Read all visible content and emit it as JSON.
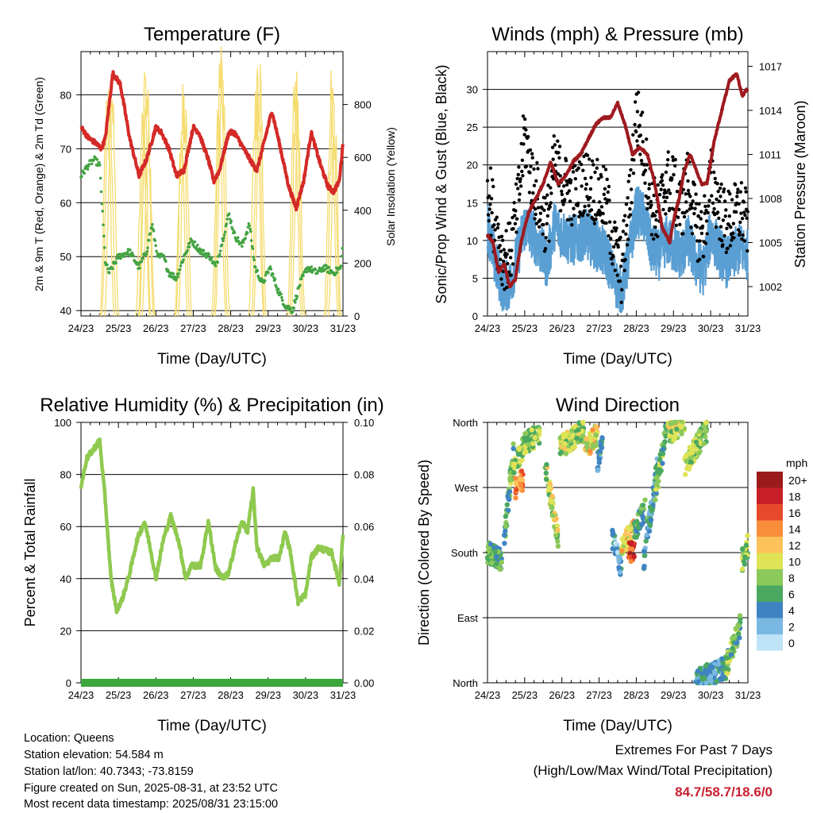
{
  "colors": {
    "temperature": "#d42a27",
    "dewpoint": "#43a343",
    "insolation": "#f5dc6f",
    "gust": "#000000",
    "wind": "#5a9fd3",
    "pressure": "#9e1a1f",
    "humidity": "#8fc94f",
    "precip": "#3ca83c",
    "extremes": "#c8202f"
  },
  "time_ticks": [
    "24/23",
    "25/23",
    "26/23",
    "27/23",
    "28/23",
    "29/23",
    "30/23",
    "31/23"
  ],
  "xlabel": "Time (Day/UTC)",
  "chart_data": [
    {
      "panel": "temperature",
      "type": "line",
      "title": "Temperature (F)",
      "ylabel_left": "2m & 9m T (Red, Orange) & 2m Td (Green)",
      "ylabel_right": "Solar Insolation (Yellow)",
      "ylim_left": [
        39,
        88
      ],
      "ylim_right": [
        0,
        1000
      ],
      "yticks_left": [
        40,
        50,
        60,
        70,
        80
      ],
      "yticks_right": [
        0,
        200,
        400,
        600,
        800
      ],
      "x_day_range": [
        24,
        31
      ],
      "grid": "horizontal",
      "series": [
        {
          "name": "2m T",
          "axis": "left",
          "x": [
            24,
            24.2,
            24.4,
            24.55,
            24.65,
            24.85,
            25.05,
            25.3,
            25.55,
            25.75,
            26.0,
            26.15,
            26.35,
            26.55,
            26.75,
            27.0,
            27.15,
            27.4,
            27.55,
            27.7,
            27.95,
            28.1,
            28.35,
            28.6,
            28.7,
            28.85,
            29.1,
            29.3,
            29.55,
            29.75,
            29.95,
            30.15,
            30.4,
            30.6,
            30.75,
            30.9,
            31.0
          ],
          "values": [
            74,
            72,
            71,
            70,
            72,
            84,
            82,
            72,
            65,
            68,
            74,
            73,
            70,
            65,
            66,
            74,
            73,
            68,
            64,
            66,
            73,
            73,
            70,
            67,
            66,
            70,
            77,
            71,
            63,
            59,
            64,
            73,
            67,
            63,
            62,
            64,
            71
          ]
        },
        {
          "name": "2m Td",
          "axis": "left",
          "x": [
            24,
            24.2,
            24.35,
            24.5,
            24.65,
            24.75,
            25.0,
            25.3,
            25.55,
            25.75,
            25.9,
            26.05,
            26.2,
            26.35,
            26.55,
            26.75,
            26.95,
            27.2,
            27.45,
            27.6,
            27.85,
            27.95,
            28.1,
            28.3,
            28.5,
            28.65,
            28.85,
            29.05,
            29.25,
            29.45,
            29.65,
            29.85,
            30.05,
            30.3,
            30.5,
            30.75,
            30.95,
            31.0
          ],
          "values": [
            65,
            67,
            68,
            67,
            49,
            47,
            50,
            51,
            48,
            51,
            56,
            50,
            50,
            47,
            46,
            50,
            53,
            51,
            50,
            48,
            55,
            58,
            54,
            52,
            56,
            48,
            45,
            48,
            44,
            41,
            40,
            45,
            48,
            47,
            48,
            47,
            48,
            54
          ]
        },
        {
          "name": "Solar Insolation",
          "axis": "right",
          "peak_days": [
            24.7,
            24.75,
            24.82,
            25.65,
            25.7,
            25.75,
            25.8,
            26.68,
            26.72,
            26.78,
            27.68,
            27.73,
            27.78,
            28.68,
            28.73,
            28.78,
            29.7,
            29.75,
            29.8,
            30.68,
            30.73,
            30.78
          ],
          "peak_values": [
            800,
            850,
            900,
            750,
            880,
            920,
            700,
            700,
            820,
            780,
            780,
            950,
            900,
            850,
            950,
            900,
            850,
            880,
            700,
            850,
            820,
            750
          ]
        }
      ]
    },
    {
      "panel": "winds",
      "type": "line",
      "title": "Winds (mph) & Pressure (mb)",
      "ylabel_left": "Sonic/Prop Wind & Gust (Blue, Black)",
      "ylabel_right": "Station Pressure (Maroon)",
      "ylim_left": [
        0,
        35
      ],
      "ylim_right": [
        1000,
        1018
      ],
      "yticks_left": [
        0,
        5,
        10,
        15,
        20,
        25,
        30
      ],
      "yticks_right": [
        1002,
        1005,
        1008,
        1011,
        1014,
        1017
      ],
      "x_day_range": [
        24,
        31
      ],
      "grid": "horizontal",
      "series": [
        {
          "name": "Wind",
          "axis": "left",
          "x": [
            24,
            24.2,
            24.4,
            24.6,
            24.8,
            25.0,
            25.2,
            25.4,
            25.6,
            25.8,
            26.0,
            26.2,
            26.4,
            26.6,
            26.8,
            27.0,
            27.2,
            27.4,
            27.6,
            27.8,
            28.0,
            28.2,
            28.4,
            28.6,
            28.8,
            29.0,
            29.2,
            29.4,
            29.6,
            29.8,
            30.0,
            30.2,
            30.4,
            30.6,
            30.8,
            31.0
          ],
          "values": [
            12,
            7,
            4,
            4,
            8,
            12,
            11,
            9,
            7,
            12,
            11,
            10,
            10,
            11,
            10,
            9,
            8,
            5,
            3,
            8,
            14,
            13,
            9,
            8,
            10,
            9,
            8,
            10,
            7,
            6,
            11,
            9,
            7,
            8,
            9,
            8
          ]
        },
        {
          "name": "Gust",
          "axis": "left",
          "x": [
            24,
            24.2,
            24.4,
            24.6,
            24.8,
            25.0,
            25.2,
            25.4,
            25.6,
            25.8,
            26.0,
            26.2,
            26.4,
            26.6,
            26.8,
            27.0,
            27.2,
            27.4,
            27.6,
            27.8,
            28.0,
            28.2,
            28.4,
            28.6,
            28.8,
            29.0,
            29.2,
            29.4,
            29.6,
            29.8,
            30.0,
            30.2,
            30.4,
            30.6,
            30.8,
            31.0
          ],
          "values": [
            18,
            12,
            8,
            8,
            14,
            24,
            18,
            15,
            12,
            20,
            18,
            16,
            17,
            18,
            17,
            16,
            15,
            9,
            6,
            14,
            27,
            22,
            15,
            13,
            18,
            17,
            14,
            18,
            12,
            11,
            18,
            15,
            12,
            13,
            14,
            12
          ]
        },
        {
          "name": "Station Pressure",
          "axis": "right",
          "x": [
            24,
            24.15,
            24.3,
            24.45,
            24.6,
            24.75,
            24.9,
            25.1,
            25.3,
            25.5,
            25.7,
            25.9,
            26.1,
            26.3,
            26.5,
            26.7,
            26.9,
            27.1,
            27.3,
            27.5,
            27.7,
            27.9,
            28.1,
            28.3,
            28.5,
            28.7,
            28.9,
            29.0,
            29.15,
            29.3,
            29.45,
            29.6,
            29.75,
            29.9,
            30.1,
            30.3,
            30.5,
            30.7,
            30.85,
            31.0
          ],
          "values": [
            1005.5,
            1005,
            1003,
            1003.5,
            1002,
            1002.5,
            1005,
            1007,
            1008,
            1009,
            1010.5,
            1009,
            1009.5,
            1010.5,
            1011,
            1012,
            1013,
            1013.5,
            1013.5,
            1014.5,
            1013,
            1011,
            1011.5,
            1011,
            1009,
            1006,
            1005,
            1006.5,
            1008,
            1010,
            1011,
            1010,
            1009,
            1009,
            1012,
            1014,
            1016,
            1016.5,
            1015,
            1015.5
          ]
        }
      ]
    },
    {
      "panel": "humidity",
      "type": "line",
      "title": "Relative Humidity (%) & Precipitation (in)",
      "ylabel_left": "Percent & Total Rainfall",
      "ylim_left": [
        0,
        100
      ],
      "ylim_right": [
        0.0,
        0.1
      ],
      "yticks_left": [
        0,
        20,
        40,
        60,
        80,
        100
      ],
      "yticks_right": [
        "0.00",
        "0.02",
        "0.04",
        "0.06",
        "0.08",
        "0.10"
      ],
      "x_day_range": [
        24,
        31
      ],
      "grid": "horizontal",
      "series": [
        {
          "name": "Relative Humidity",
          "axis": "left",
          "x": [
            24,
            24.15,
            24.3,
            24.5,
            24.65,
            24.8,
            24.95,
            25.1,
            25.3,
            25.5,
            25.7,
            25.85,
            26.0,
            26.2,
            26.4,
            26.6,
            26.8,
            26.95,
            27.2,
            27.4,
            27.6,
            27.8,
            27.95,
            28.1,
            28.3,
            28.45,
            28.6,
            28.7,
            28.9,
            29.1,
            29.3,
            29.45,
            29.6,
            29.8,
            30.0,
            30.15,
            30.35,
            30.5,
            30.7,
            30.9,
            31.0
          ],
          "values": [
            75,
            86,
            89,
            93,
            70,
            40,
            28,
            32,
            42,
            55,
            62,
            52,
            40,
            55,
            64,
            55,
            40,
            45,
            45,
            62,
            44,
            40,
            42,
            52,
            62,
            58,
            74,
            52,
            45,
            48,
            48,
            58,
            50,
            31,
            34,
            48,
            52,
            51,
            50,
            38,
            57
          ]
        },
        {
          "name": "Total Precipitation",
          "axis": "right",
          "x": [
            24,
            31
          ],
          "values": [
            0,
            0
          ]
        }
      ]
    },
    {
      "panel": "wind_direction",
      "type": "scatter",
      "title": "Wind Direction",
      "ylabel_left": "Direction (Colored By Speed)",
      "ytick_labels": [
        "North",
        "East",
        "South",
        "West",
        "North"
      ],
      "ytick_values": [
        0,
        90,
        180,
        270,
        360
      ],
      "x_day_range": [
        24,
        31
      ],
      "grid": "horizontal",
      "colorbar": {
        "unit": "mph",
        "labels": [
          "0",
          "2",
          "4",
          "6",
          "8",
          "10",
          "12",
          "14",
          "16",
          "18",
          "20+"
        ],
        "colors": [
          "#bee3f7",
          "#79b8e2",
          "#3f84c2",
          "#4aa860",
          "#8bc95a",
          "#dfe356",
          "#fdc25a",
          "#f98e3a",
          "#e74a2a",
          "#c81f27",
          "#9b1b1d"
        ]
      },
      "segments": [
        {
          "x0": 24.0,
          "x1": 24.4,
          "d0": 180,
          "d1": 170,
          "spd": 6
        },
        {
          "x0": 24.45,
          "x1": 24.7,
          "d0": 200,
          "d1": 320,
          "spd": 6
        },
        {
          "x0": 24.6,
          "x1": 25.0,
          "d0": 285,
          "d1": 330,
          "spd": 8
        },
        {
          "x0": 24.75,
          "x1": 24.95,
          "d0": 270,
          "d1": 280,
          "spd": 14
        },
        {
          "x0": 25.0,
          "x1": 25.4,
          "d0": 330,
          "d1": 345,
          "spd": 8
        },
        {
          "x0": 25.55,
          "x1": 25.9,
          "d0": 300,
          "d1": 200,
          "spd": 9
        },
        {
          "x0": 25.95,
          "x1": 26.6,
          "d0": 325,
          "d1": 350,
          "spd": 9
        },
        {
          "x0": 26.6,
          "x1": 26.95,
          "d0": 320,
          "d1": 345,
          "spd": 11
        },
        {
          "x0": 26.95,
          "x1": 27.1,
          "d0": 300,
          "d1": 345,
          "spd": 5
        },
        {
          "x0": 27.35,
          "x1": 27.6,
          "d0": 200,
          "d1": 160,
          "spd": 3
        },
        {
          "x0": 27.6,
          "x1": 27.95,
          "d0": 190,
          "d1": 215,
          "spd": 11
        },
        {
          "x0": 27.8,
          "x1": 27.95,
          "d0": 180,
          "d1": 185,
          "spd": 17
        },
        {
          "x0": 27.95,
          "x1": 28.25,
          "d0": 210,
          "d1": 240,
          "spd": 6
        },
        {
          "x0": 28.2,
          "x1": 28.6,
          "d0": 170,
          "d1": 310,
          "spd": 4
        },
        {
          "x0": 28.5,
          "x1": 28.8,
          "d0": 260,
          "d1": 345,
          "spd": 7
        },
        {
          "x0": 28.85,
          "x1": 29.3,
          "d0": 345,
          "d1": 360,
          "spd": 9
        },
        {
          "x0": 29.3,
          "x1": 29.9,
          "d0": 300,
          "d1": 350,
          "spd": 8
        },
        {
          "x0": 29.6,
          "x1": 30.4,
          "d0": 5,
          "d1": 20,
          "spd": 4
        },
        {
          "x0": 30.4,
          "x1": 30.8,
          "d0": 20,
          "d1": 80,
          "spd": 7
        },
        {
          "x0": 30.85,
          "x1": 31.0,
          "d0": 170,
          "d1": 190,
          "spd": 8
        }
      ]
    }
  ],
  "footer": {
    "location": "Location: Queens",
    "elevation": "Station elevation: 54.584 m",
    "latlon": "Station lat/lon: 40.7343; -73.8159",
    "created": "Figure created on Sun, 2025-08-31, at 23:52 UTC",
    "recent": "Most recent data timestamp: 2025/08/31 23:15:00",
    "extremes_title": "Extremes For Past 7 Days",
    "extremes_subtitle": "(High/Low/Max Wind/Total Precipitation)",
    "extremes_values": "84.7/58.7/18.6/0"
  }
}
